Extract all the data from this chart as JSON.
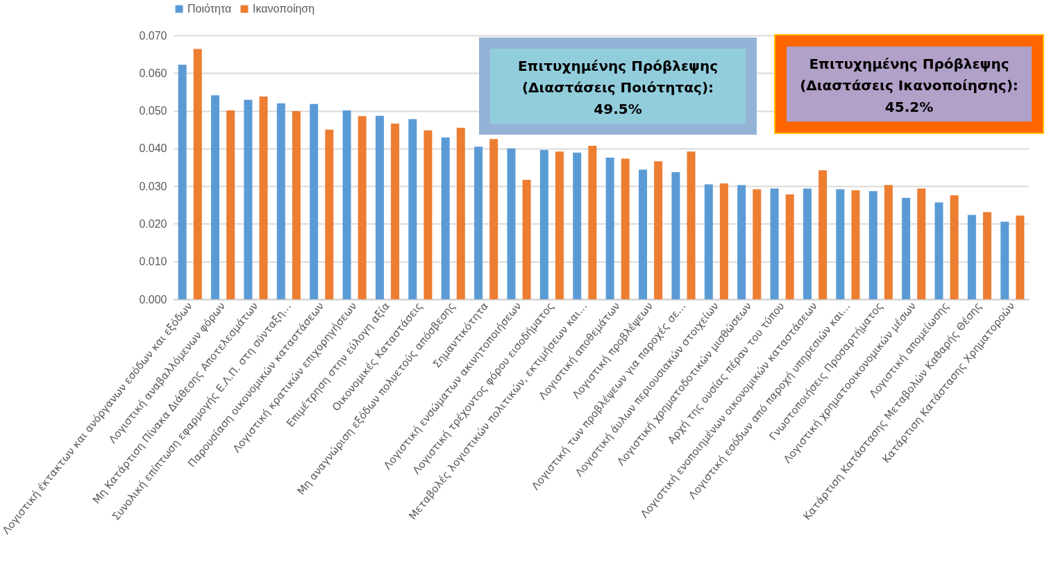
{
  "chart_data": {
    "type": "bar",
    "categories": [
      "Λογιστική έκτακτων και ανόργανων εσόδων και εξόδων",
      "Λογιστική αναβαλλόμενων φόρων",
      "Μη Κατάρτιση Πίνακα Διάθεσης Αποτελεσμάτων",
      "Συνολική επίπτωση εφαρμογής Ε.Λ.Π. στη σύνταξη…",
      "Παρουσίαση οικονομικών καταστάσεων",
      "Λογιστική κρατικών επιχορηγήσεων",
      "Επιμέτρηση στην εύλογη αξία",
      "Οικονομικές Καταστάσεις",
      "Μη αναγνώριση εξόδων πολυετούς απόσβεσης",
      "Σημαντικότητα",
      "Λογιστική ενσώματων ακινητοποιήσεων",
      "Λογιστική τρέχοντος φόρου εισοδήματος",
      "Μεταβολές λογιστικών πολιτικών, εκτιμήσεων και…",
      "Λογιστική αποθεμάτων",
      "Λογιστική προβλέψεων",
      "Λογιστική των προβλέψεων για παροχές σε…",
      "Λογιστική άυλων περιουσιακών στοιχείων",
      "Λογιστική χρηματοδοτικών μισθώσεων",
      "Αρχή της ουσίας πέραν του τύπου",
      "Λογιστική ενοποιημένων οικονομικών καταστάσεων",
      "Λογιστική εσόδων από παροχή υπηρεσιών και…",
      "Γνωστοποιήσεις Προσαρτήματος",
      "Λογιστική χρηματοοικονομικών μέσων",
      "Λογιστική απομείωσης",
      "Κατάρτιση Κατάστασης Μεταβολών Καθαρής Θέσης",
      "Κατάρτιση Κατάστασης Χρηματοροών"
    ],
    "series": [
      {
        "name": "Ποιότητα",
        "color": "#5b9bd5",
        "values": [
          0.0622,
          0.0541,
          0.0529,
          0.052,
          0.0518,
          0.0501,
          0.0487,
          0.0478,
          0.0429,
          0.0405,
          0.04,
          0.0396,
          0.0389,
          0.0376,
          0.0344,
          0.0337,
          0.0305,
          0.0303,
          0.0294,
          0.0294,
          0.0292,
          0.0287,
          0.0269,
          0.0257,
          0.0224,
          0.0206
        ]
      },
      {
        "name": "Ικανοποίηση",
        "color": "#ed7d31",
        "values": [
          0.0664,
          0.0501,
          0.0538,
          0.0499,
          0.045,
          0.0486,
          0.0466,
          0.0448,
          0.0455,
          0.0425,
          0.0317,
          0.0392,
          0.0407,
          0.0373,
          0.0366,
          0.0392,
          0.0307,
          0.0292,
          0.0278,
          0.0342,
          0.0289,
          0.0303,
          0.0294,
          0.0276,
          0.0231,
          0.0222
        ]
      }
    ],
    "ylim": [
      0,
      0.07
    ],
    "yticks": [
      {
        "value": 0,
        "label": "0.000"
      },
      {
        "value": 0.01,
        "label": "0.010"
      },
      {
        "value": 0.02,
        "label": "0.020"
      },
      {
        "value": 0.03,
        "label": "0.030"
      },
      {
        "value": 0.04,
        "label": "0.040"
      },
      {
        "value": 0.05,
        "label": "0.050"
      },
      {
        "value": 0.06,
        "label": "0.060"
      },
      {
        "value": 0.07,
        "label": "0.070"
      }
    ],
    "grid": "y",
    "legend": "top",
    "annotations": [
      "Επιτυχημένης Πρόβλεψης (Διαστάσεις Ποιότητας): 49.5%",
      "Επιτυχημένης Πρόβλεψης (Διαστάσεις Ικανοποίησης): 45.2%"
    ]
  }
}
